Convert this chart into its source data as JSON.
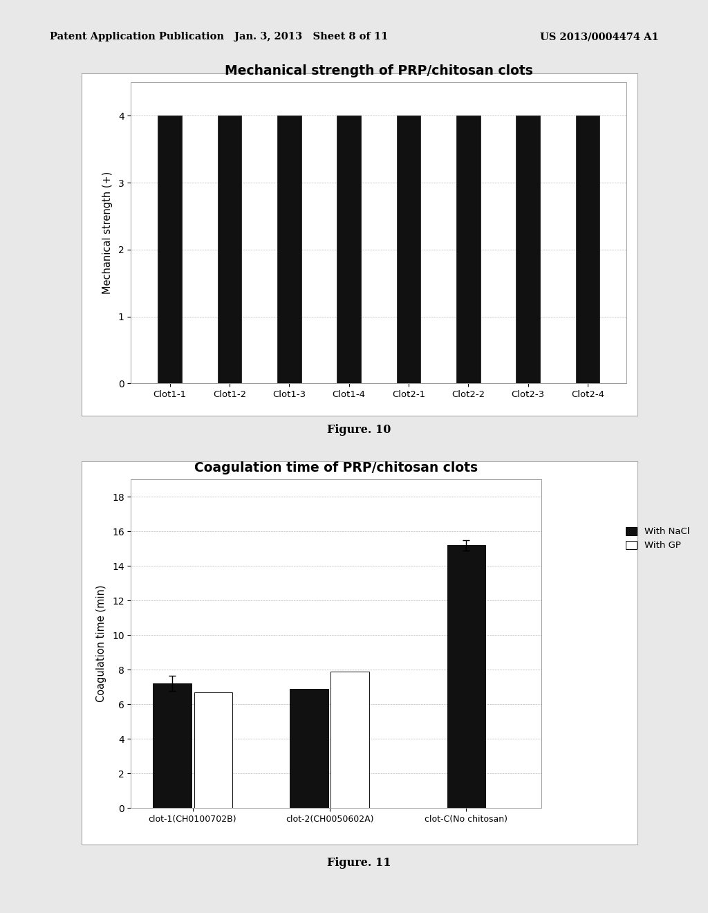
{
  "header_left": "Patent Application Publication",
  "header_mid": "Jan. 3, 2013   Sheet 8 of 11",
  "header_right": "US 2013/0004474 A1",
  "fig10": {
    "title": "Mechanical strength of PRP/chitosan clots",
    "categories": [
      "Clot1-1",
      "Clot1-2",
      "Clot1-3",
      "Clot1-4",
      "Clot2-1",
      "Clot2-2",
      "Clot2-3",
      "Clot2-4"
    ],
    "values": [
      4,
      4,
      4,
      4,
      4,
      4,
      4,
      4
    ],
    "bar_color": "#111111",
    "ylabel": "Mechanical strength (+)",
    "ylim": [
      0,
      4.5
    ],
    "yticks": [
      0,
      1,
      2,
      3,
      4
    ],
    "figure_label": "Figure. 10"
  },
  "fig11": {
    "title": "Coagulation time of PRP/chitosan clots",
    "categories": [
      "clot-1(CH0100702B)",
      "clot-2(CH0050602A)",
      "clot-C(No chitosan)"
    ],
    "nacl_values": [
      7.2,
      6.9,
      15.2
    ],
    "gp_values": [
      6.7,
      7.9,
      null
    ],
    "nacl_errors": [
      0.45,
      0.0,
      0.3
    ],
    "nacl_color": "#111111",
    "gp_color": "#ffffff",
    "bar_edge_color": "#111111",
    "ylabel": "Coagulation time (min)",
    "ylim": [
      0,
      19
    ],
    "yticks": [
      0,
      2,
      4,
      6,
      8,
      10,
      12,
      14,
      16,
      18
    ],
    "legend_nacl": "With NaCl",
    "legend_gp": "With GP",
    "figure_label": "Figure. 11"
  },
  "page_bg": "#e8e8e8",
  "chart_bg": "#ffffff",
  "border_color": "#aaaaaa"
}
